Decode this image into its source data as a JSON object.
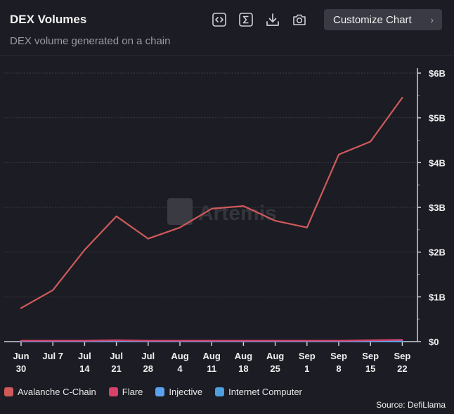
{
  "header": {
    "title": "DEX Volumes",
    "subtitle": "DEX volume generated on a chain",
    "customize_label": "Customize Chart",
    "tools": [
      "code-embed-icon",
      "sigma-icon",
      "download-icon",
      "camera-icon"
    ]
  },
  "watermark": "Artemis",
  "source": "Source: DefiLlama",
  "legend": [
    {
      "name": "Avalanche C-Chain",
      "color": "#d05a5a"
    },
    {
      "name": "Flare",
      "color": "#d8426a"
    },
    {
      "name": "Injective",
      "color": "#5aa2f0"
    },
    {
      "name": "Internet Computer",
      "color": "#4f9ede"
    }
  ],
  "chart_data": {
    "type": "line",
    "x": [
      [
        "Jun",
        "30"
      ],
      [
        "Jul 7"
      ],
      [
        "Jul",
        "14"
      ],
      [
        "Jul",
        "21"
      ],
      [
        "Jul",
        "28"
      ],
      [
        "Aug",
        "4"
      ],
      [
        "Aug",
        "11"
      ],
      [
        "Aug",
        "18"
      ],
      [
        "Aug",
        "25"
      ],
      [
        "Sep",
        "1"
      ],
      [
        "Sep",
        "8"
      ],
      [
        "Sep",
        "15"
      ],
      [
        "Sep",
        "22"
      ]
    ],
    "y_ticks": [
      "$0",
      "$1B",
      "$2B",
      "$3B",
      "$4B",
      "$5B",
      "$6B"
    ],
    "ylim": [
      0,
      6
    ],
    "grid": true,
    "legend_position": "bottom-left",
    "series": [
      {
        "name": "Avalanche C-Chain",
        "color": "#d05a5a",
        "values": [
          0.75,
          1.15,
          2.05,
          2.8,
          2.3,
          2.55,
          2.97,
          3.03,
          2.7,
          2.55,
          4.18,
          4.47,
          5.45
        ]
      },
      {
        "name": "Flare",
        "color": "#d8426a",
        "values": [
          0.02,
          0.02,
          0.02,
          0.03,
          0.02,
          0.02,
          0.02,
          0.02,
          0.02,
          0.02,
          0.02,
          0.03,
          0.04
        ]
      },
      {
        "name": "Injective",
        "color": "#5aa2f0",
        "values": [
          0.01,
          0.01,
          0.01,
          0.01,
          0.01,
          0.01,
          0.01,
          0.01,
          0.01,
          0.01,
          0.01,
          0.01,
          0.01
        ]
      },
      {
        "name": "Internet Computer",
        "color": "#4f9ede",
        "values": [
          0.005,
          0.005,
          0.005,
          0.005,
          0.005,
          0.005,
          0.005,
          0.005,
          0.005,
          0.005,
          0.005,
          0.005,
          0.005
        ]
      }
    ]
  }
}
